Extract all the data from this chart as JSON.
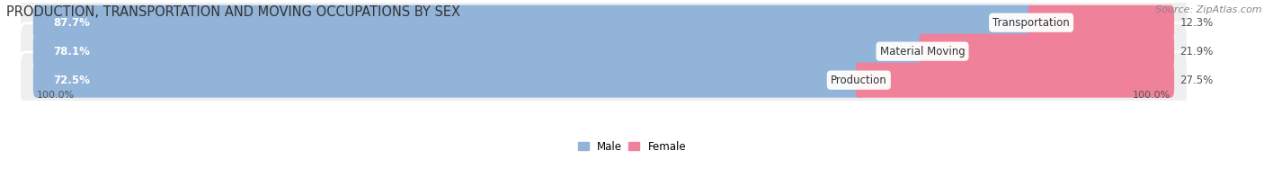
{
  "title": "PRODUCTION, TRANSPORTATION AND MOVING OCCUPATIONS BY SEX",
  "source": "Source: ZipAtlas.com",
  "categories": [
    "Transportation",
    "Material Moving",
    "Production"
  ],
  "male_values": [
    87.7,
    78.1,
    72.5
  ],
  "female_values": [
    12.3,
    21.9,
    27.5
  ],
  "male_color": "#92b4d8",
  "female_color": "#f0819a",
  "male_label": "Male",
  "female_label": "Female",
  "row_bg_color": "#efefef",
  "row_edge_color": "#dddddd",
  "title_fontsize": 10.5,
  "source_fontsize": 8,
  "label_fontsize": 8.5,
  "pct_fontsize": 8.5,
  "tick_fontsize": 8,
  "axis_label_left": "100.0%",
  "axis_label_right": "100.0%"
}
